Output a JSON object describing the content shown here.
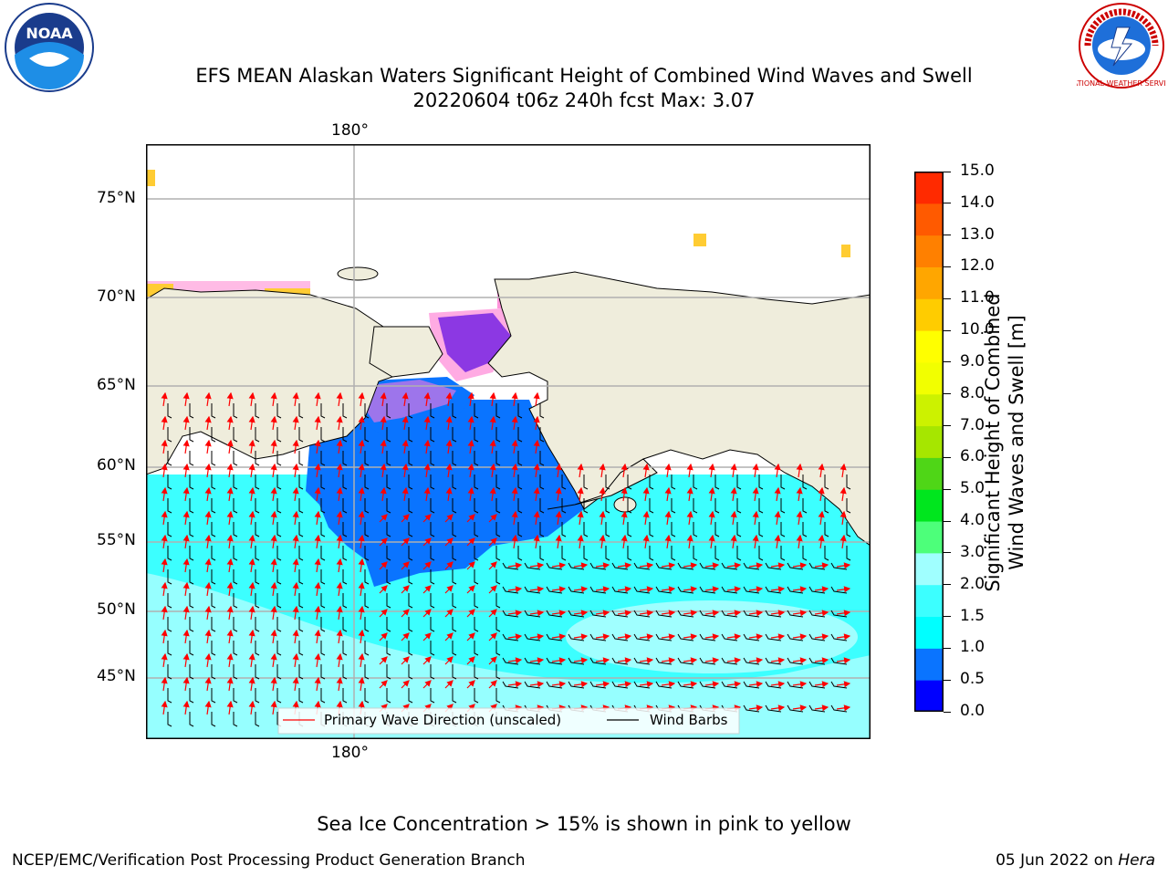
{
  "header": {
    "title_line1": "EFS MEAN Alaskan Waters Significant Height of Combined Wind Waves and Swell",
    "title_line2": "20220604 t06z 240h fcst   Max: 3.07"
  },
  "logos": {
    "noaa_text": "NOAA",
    "nws_text": "NATIONAL WEATHER SERVICE"
  },
  "map": {
    "lon_label_top": "180°",
    "lon_label_bottom": "180°",
    "lat_labels": [
      "75°N",
      "70°N",
      "65°N",
      "60°N",
      "55°N",
      "50°N",
      "45°N"
    ],
    "legend": {
      "wave_direction": "Primary Wave Direction (unscaled)",
      "wind_barbs": "Wind Barbs"
    }
  },
  "colorbar": {
    "label_line1": "Significant Height of Combined",
    "label_line2": "Wind Waves and Swell [m]",
    "ticks": [
      "0.0",
      "0.5",
      "1.0",
      "1.5",
      "2.0",
      "3.0",
      "4.0",
      "5.0",
      "6.0",
      "7.0",
      "8.0",
      "9.0",
      "10.0",
      "11.0",
      "12.0",
      "13.0",
      "14.0",
      "15.0"
    ],
    "colors": [
      "#0000ff",
      "#0a74ff",
      "#00ffff",
      "#3cffff",
      "#a0ffff",
      "#4dff7a",
      "#00e61e",
      "#4fd617",
      "#a6e600",
      "#ccf200",
      "#f2ff00",
      "#ffff00",
      "#ffcc00",
      "#ffa600",
      "#ff8000",
      "#ff5a00",
      "#ff2a00"
    ]
  },
  "notes": {
    "sea_ice": "Sea Ice Concentration > 15% is shown in pink to yellow"
  },
  "footer": {
    "left": "NCEP/EMC/Verification Post Processing Product Generation Branch",
    "date": "05 Jun 2022 on ",
    "host": "Hera"
  },
  "colors": {
    "land": "#efeddc",
    "ocean_light": "#a0ffff",
    "ocean_mid": "#3cffff",
    "ocean_low": "#0a74ff",
    "wave_arrow": "#ff0000",
    "grid": "#b0b0b0"
  }
}
